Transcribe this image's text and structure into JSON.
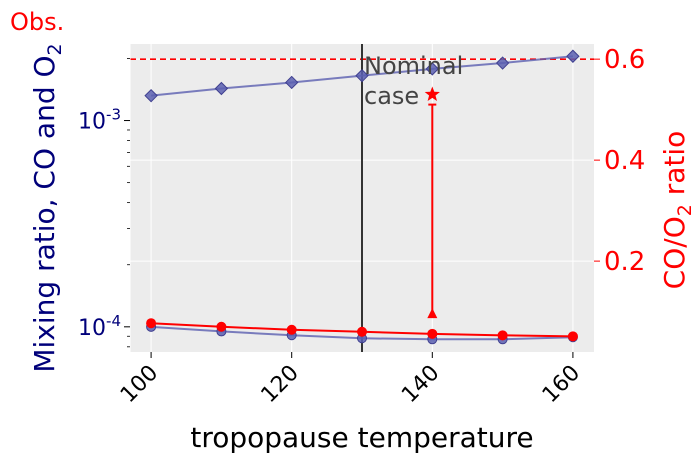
{
  "chart_data": {
    "type": "line",
    "xlabel": "tropopause temperature",
    "ylabel_left": "Mixing ratio, CO and O",
    "ylabel_left_sub": "2",
    "ylabel_right_pre": "CO/O",
    "ylabel_right_sub": "2",
    "ylabel_right_post": " ratio",
    "obs_label": "Obs.",
    "nominal_label_line1": "Nominal",
    "nominal_label_line2": "case",
    "x_ticks": [
      "100",
      "120",
      "140",
      "160"
    ],
    "x_tick_values": [
      100,
      120,
      140,
      160
    ],
    "xlim": [
      97,
      163
    ],
    "y_left_scale": "log",
    "y_left_ticks": [
      {
        "base": "10",
        "exp": "-4",
        "value": 0.0001
      },
      {
        "base": "10",
        "exp": "-3",
        "value": 0.001
      }
    ],
    "ylim_left": [
      7.55e-05,
      0.00235
    ],
    "y_right_ticks": [
      "0.2",
      "0.4",
      "0.6"
    ],
    "y_right_tick_values": [
      0.2,
      0.4,
      0.6
    ],
    "ylim_right": [
      0.02,
      0.63
    ],
    "grid": true,
    "nominal_x": 130,
    "obs_ratio": 0.6,
    "series": [
      {
        "name": "",
        "axis": "left",
        "marker": "diamond",
        "color": "#5b5fb0",
        "x": [
          100,
          110,
          120,
          130,
          140,
          150,
          160
        ],
        "values": [
          0.00132,
          0.00143,
          0.00153,
          0.00165,
          0.00178,
          0.0019,
          0.00205
        ]
      },
      {
        "name": "",
        "axis": "left",
        "marker": "circle",
        "color": "#5b5fb0",
        "x": [
          100,
          110,
          120,
          130,
          140,
          150,
          160
        ],
        "values": [
          0.0001,
          9.5e-05,
          9.1e-05,
          8.8e-05,
          8.7e-05,
          8.7e-05,
          8.9e-05
        ]
      },
      {
        "name": "",
        "axis": "right",
        "marker": "circle",
        "color": "#ff0000",
        "x": [
          100,
          110,
          120,
          130,
          140,
          150,
          160
        ],
        "values": [
          0.077,
          0.07,
          0.064,
          0.06,
          0.056,
          0.053,
          0.051
        ]
      }
    ],
    "annotation": {
      "x": 140,
      "star_ratio": 0.53,
      "line_top_ratio": 0.51,
      "triangle_ratio": 0.095,
      "color": "#ff0000"
    }
  }
}
